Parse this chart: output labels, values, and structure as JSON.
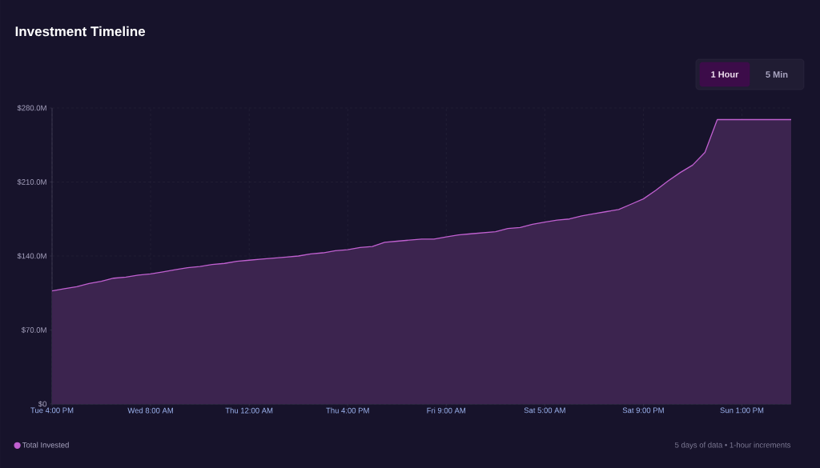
{
  "chart_data": {
    "type": "area",
    "title": "Investment Timeline",
    "annotations": [
      "1 Hour",
      "5 Min",
      "5 days of data • 1-hour increments"
    ],
    "categories": [
      "Tue 4:00 PM",
      null,
      null,
      null,
      null,
      null,
      null,
      null,
      "Wed 8:00 AM",
      null,
      null,
      null,
      null,
      null,
      null,
      null,
      "Thu 12:00 AM",
      null,
      null,
      null,
      null,
      null,
      null,
      null,
      "Thu 4:00 PM",
      null,
      null,
      null,
      null,
      null,
      null,
      null,
      "Fri 9:00 AM",
      null,
      null,
      null,
      null,
      null,
      null,
      null,
      "Sat 5:00 AM",
      null,
      null,
      null,
      null,
      null,
      null,
      null,
      "Sat 9:00 PM",
      null,
      null,
      null,
      null,
      null,
      null,
      null,
      "Sun 1:00 PM",
      null,
      null,
      null,
      null
    ],
    "series": [
      {
        "name": "Total Invested",
        "color": "#c060d0",
        "values": [
          107,
          109,
          111,
          114,
          116,
          119,
          120,
          122,
          123,
          125,
          127,
          129,
          130,
          132,
          133,
          135,
          136,
          137,
          138,
          139,
          140,
          142,
          143,
          145,
          146,
          148,
          149,
          153,
          154,
          155,
          156,
          156,
          158,
          160,
          161,
          162,
          163,
          166,
          167,
          170,
          172,
          174,
          175,
          178,
          180,
          182,
          184,
          189,
          194,
          202,
          211,
          219,
          226,
          238,
          269,
          269,
          269,
          269,
          269,
          269,
          269
        ]
      }
    ],
    "ylim": [
      0,
      280
    ],
    "yticks": [
      {
        "value": 0,
        "label": "$0"
      },
      {
        "value": 70,
        "label": "$70.0M"
      },
      {
        "value": 140,
        "label": "$140.0M"
      },
      {
        "value": 210,
        "label": "$210.0M"
      },
      {
        "value": 280,
        "label": "$280.0M"
      }
    ],
    "grid": true,
    "legend": "bottom left",
    "marker": "none",
    "line_style": "solid"
  }
}
